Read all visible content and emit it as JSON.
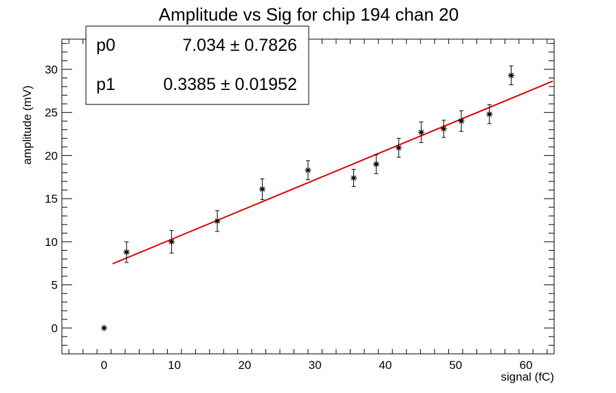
{
  "chart_data": {
    "type": "scatter",
    "title": "Amplitude vs Sig for chip 194 chan 20",
    "xlabel": "signal (fC)",
    "ylabel": "amplitude (mV)",
    "xlim": [
      -6,
      64
    ],
    "ylim": [
      -3,
      33.5
    ],
    "x_ticks": [
      0,
      10,
      20,
      30,
      40,
      50,
      60
    ],
    "y_ticks": [
      0,
      5,
      10,
      15,
      20,
      25,
      30
    ],
    "grid": false,
    "marker": "asterisk",
    "marker_color": "#000000",
    "fit_color": "#e00000",
    "points": [
      {
        "x": 0,
        "y": 0,
        "err": 0
      },
      {
        "x": 3.2,
        "y": 8.8,
        "err": 1.2
      },
      {
        "x": 9.6,
        "y": 10.0,
        "err": 1.3
      },
      {
        "x": 16.1,
        "y": 12.4,
        "err": 1.2
      },
      {
        "x": 22.5,
        "y": 16.1,
        "err": 1.2
      },
      {
        "x": 29.0,
        "y": 18.3,
        "err": 1.1
      },
      {
        "x": 35.5,
        "y": 17.4,
        "err": 1.0
      },
      {
        "x": 38.7,
        "y": 19.0,
        "err": 1.1
      },
      {
        "x": 41.9,
        "y": 20.9,
        "err": 1.1
      },
      {
        "x": 45.1,
        "y": 22.7,
        "err": 1.2
      },
      {
        "x": 48.3,
        "y": 23.1,
        "err": 1.0
      },
      {
        "x": 50.8,
        "y": 24.0,
        "err": 1.2
      },
      {
        "x": 54.8,
        "y": 24.8,
        "err": 1.1
      },
      {
        "x": 57.9,
        "y": 29.3,
        "err": 1.1
      }
    ],
    "fit": {
      "p0": 7.034,
      "p1": 0.3385,
      "x_range": [
        1.2,
        63.8
      ]
    },
    "stats_box": {
      "position": "top-left",
      "rows": [
        {
          "name": "p0",
          "value": "7.034",
          "pm": "±",
          "error": "0.7826"
        },
        {
          "name": "p1",
          "value": "0.3385",
          "pm": "±",
          "error": "0.01952"
        }
      ]
    }
  }
}
